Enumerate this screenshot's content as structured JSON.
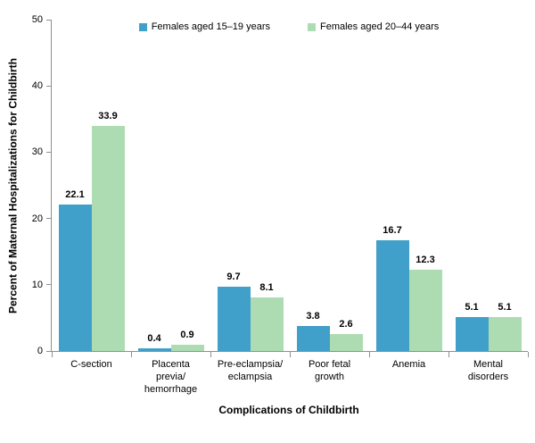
{
  "chart_data": {
    "type": "bar",
    "title": "",
    "xlabel": "Complications of Childbirth",
    "ylabel": "Percent of Maternal Hospitalizations for Childbirth",
    "categories": [
      "C-section",
      "Placenta\nprevia/\nhemorrhage",
      "Pre-eclampsia/\neclampsia",
      "Poor fetal\ngrowth",
      "Anemia",
      "Mental\ndisorders"
    ],
    "series": [
      {
        "name": "Females aged 15–19 years",
        "color": "#41A0C9",
        "values": [
          22.1,
          0.4,
          9.7,
          3.8,
          16.7,
          5.1
        ]
      },
      {
        "name": "Females aged 20–44 years",
        "color": "#AEDCB2",
        "values": [
          33.9,
          0.9,
          8.1,
          2.6,
          12.3,
          5.1
        ]
      }
    ],
    "value_label_format": "0.1f",
    "y_ticks": [
      0,
      10,
      20,
      30,
      40,
      50
    ],
    "ylim": [
      0,
      50
    ],
    "grid": false,
    "legend_position": "top",
    "axis_color": "#909090",
    "text_color": "#000000",
    "background_color": "#FFFFFF"
  }
}
